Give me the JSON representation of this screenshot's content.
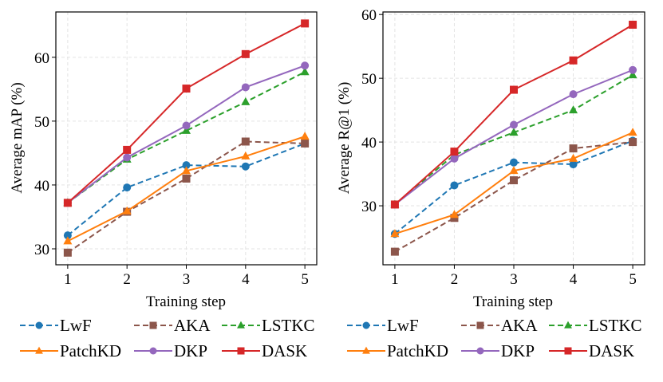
{
  "chart_data": [
    {
      "type": "line",
      "title": "",
      "xlabel": "Training step",
      "ylabel": "Average mAP (%)",
      "x": [
        1,
        2,
        3,
        4,
        5
      ],
      "xticks": [
        1,
        2,
        3,
        4,
        5
      ],
      "yticks": [
        30,
        40,
        50,
        60
      ],
      "xlim": [
        0.8,
        5.2
      ],
      "ylim": [
        27.5,
        67.1
      ],
      "grid": true,
      "legend_placement": "bottom",
      "series": [
        {
          "name": "LwF",
          "color": "#1f77b4",
          "marker": "circle",
          "dashed": true,
          "values": [
            32.1,
            39.6,
            43.1,
            42.9,
            46.5
          ]
        },
        {
          "name": "AKA",
          "color": "#8c564b",
          "marker": "square",
          "dashed": true,
          "values": [
            29.4,
            35.8,
            41.0,
            46.8,
            46.5
          ]
        },
        {
          "name": "LSTKC",
          "color": "#2ca02c",
          "marker": "triangle",
          "dashed": true,
          "values": [
            37.2,
            44.0,
            48.5,
            53.0,
            57.7
          ]
        },
        {
          "name": "PatchKD",
          "color": "#ff7f0e",
          "marker": "triangle",
          "dashed": false,
          "values": [
            31.2,
            35.9,
            42.2,
            44.5,
            47.6
          ]
        },
        {
          "name": "DKP",
          "color": "#9467bd",
          "marker": "circle",
          "dashed": false,
          "values": [
            37.2,
            44.3,
            49.3,
            55.3,
            58.7
          ]
        },
        {
          "name": "DASK",
          "color": "#d62728",
          "marker": "square",
          "dashed": false,
          "values": [
            37.2,
            45.5,
            55.1,
            60.5,
            65.3
          ]
        }
      ]
    },
    {
      "type": "line",
      "title": "",
      "xlabel": "Training step",
      "ylabel": "Average R@1 (%)",
      "x": [
        1,
        2,
        3,
        4,
        5
      ],
      "xticks": [
        1,
        2,
        3,
        4,
        5
      ],
      "yticks": [
        30,
        40,
        50,
        60
      ],
      "xlim": [
        0.8,
        5.2
      ],
      "ylim": [
        20.75,
        60.4
      ],
      "grid": true,
      "legend_placement": "bottom",
      "series": [
        {
          "name": "LwF",
          "color": "#1f77b4",
          "marker": "circle",
          "dashed": true,
          "values": [
            25.6,
            33.2,
            36.8,
            36.5,
            40.2
          ]
        },
        {
          "name": "AKA",
          "color": "#8c564b",
          "marker": "square",
          "dashed": true,
          "values": [
            22.8,
            28.1,
            34.0,
            39.0,
            40.0
          ]
        },
        {
          "name": "LSTKC",
          "color": "#2ca02c",
          "marker": "triangle",
          "dashed": true,
          "values": [
            30.2,
            38.0,
            41.5,
            45.0,
            50.5
          ]
        },
        {
          "name": "PatchKD",
          "color": "#ff7f0e",
          "marker": "triangle",
          "dashed": false,
          "values": [
            25.6,
            28.6,
            35.5,
            37.4,
            41.5
          ]
        },
        {
          "name": "DKP",
          "color": "#9467bd",
          "marker": "circle",
          "dashed": false,
          "values": [
            30.2,
            37.4,
            42.7,
            47.5,
            51.3
          ]
        },
        {
          "name": "DASK",
          "color": "#d62728",
          "marker": "square",
          "dashed": false,
          "values": [
            30.2,
            38.5,
            48.2,
            52.8,
            58.4
          ]
        }
      ]
    }
  ]
}
